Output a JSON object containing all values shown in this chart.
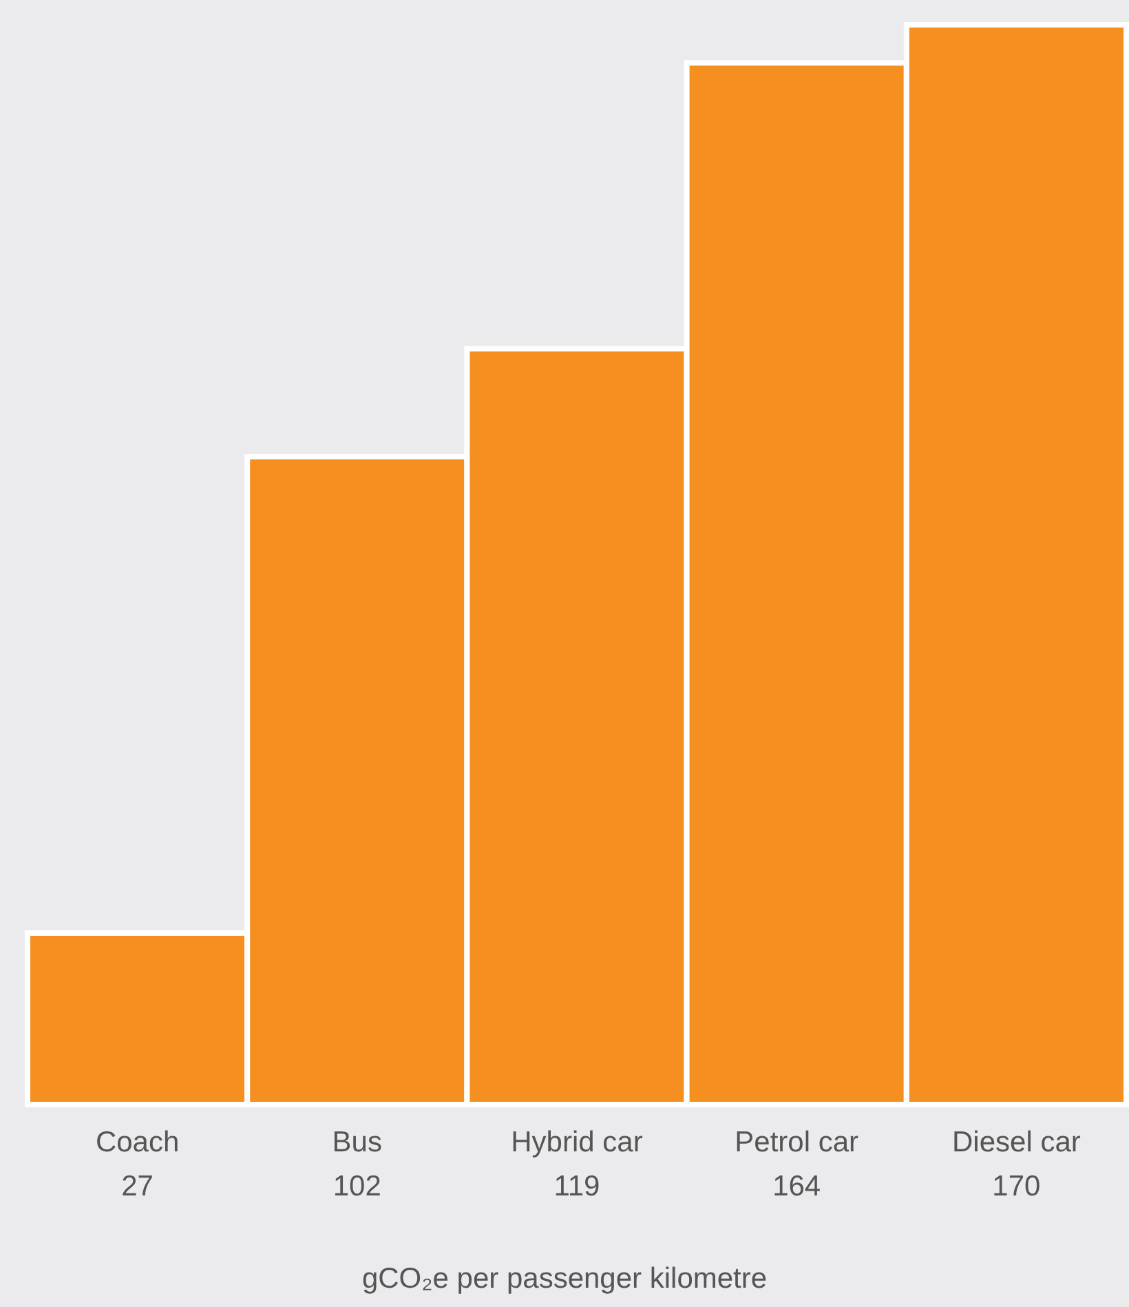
{
  "chart_data": {
    "type": "bar",
    "categories": [
      "Coach",
      "Bus",
      "Hybrid car",
      "Petrol car",
      "Diesel car"
    ],
    "values": [
      27,
      102,
      119,
      164,
      170
    ],
    "color": "#f58f20",
    "ylim": [
      0,
      170
    ],
    "data_labels": true,
    "xlabel": "gCO₂e per passenger kilometre"
  }
}
